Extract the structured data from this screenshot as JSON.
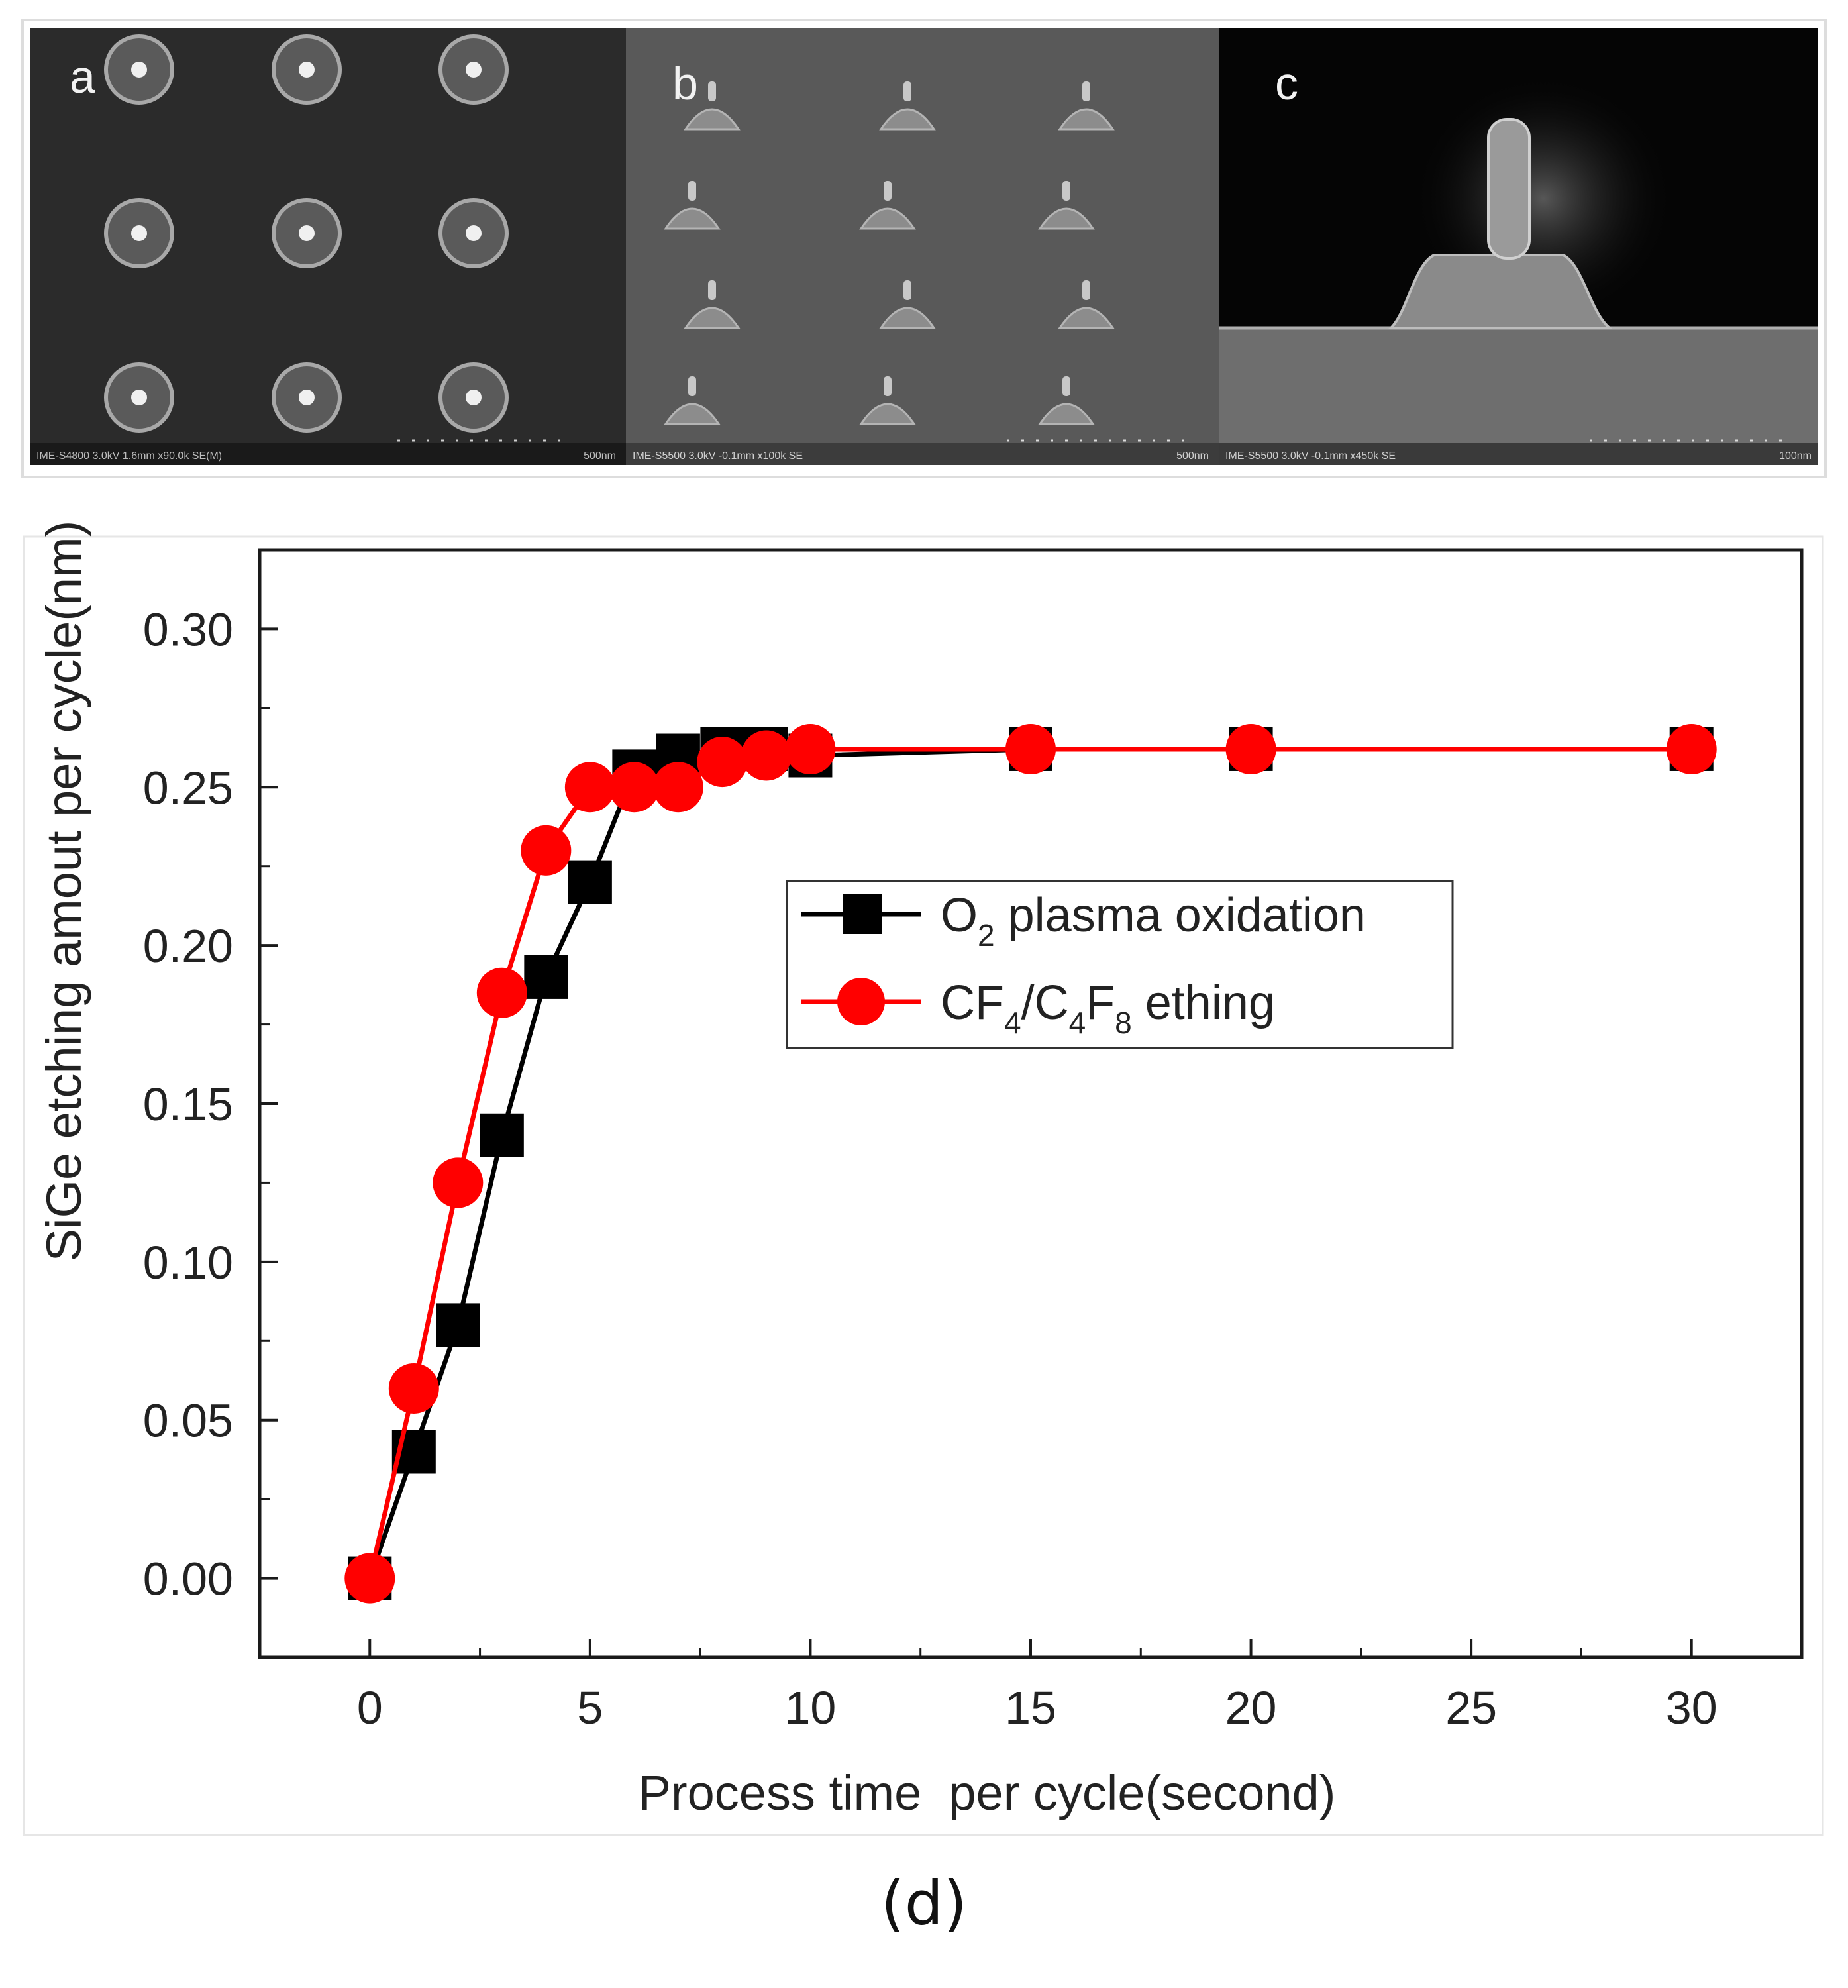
{
  "figure": {
    "caption": "(d)",
    "sem_panels": [
      {
        "label": "a",
        "footer": "IME-S4800 3.0kV 1.6mm x90.0k SE(M)",
        "scale": "500nm"
      },
      {
        "label": "b",
        "footer": "IME-S5500 3.0kV -0.1mm x100k SE",
        "scale": "500nm"
      },
      {
        "label": "c",
        "footer": "IME-S5500 3.0kV -0.1mm x450k SE",
        "scale": "100nm"
      }
    ]
  },
  "chart_data": {
    "type": "line",
    "title": "",
    "xlabel": "Process time  per cycle(second)",
    "ylabel": "SiGe etching amout per cycle(nm)",
    "xlim": [
      -2.5,
      32.5
    ],
    "ylim": [
      -0.025,
      0.325
    ],
    "xticks": [
      0,
      5,
      10,
      15,
      20,
      25,
      30
    ],
    "yticks": [
      0.0,
      0.05,
      0.1,
      0.15,
      0.2,
      0.25,
      0.3
    ],
    "xtick_labels": [
      "0",
      "5",
      "10",
      "15",
      "20",
      "25",
      "30"
    ],
    "ytick_labels": [
      "0.00",
      "0.05",
      "0.10",
      "0.15",
      "0.20",
      "0.25",
      "0.30"
    ],
    "legend_position": "center-right",
    "series": [
      {
        "name": "O2 plasma oxidation",
        "legend_main": "O",
        "legend_sub": "2",
        "legend_rest": " plasma oxidation",
        "color": "#000000",
        "marker": "square",
        "x": [
          0,
          1,
          2,
          3,
          4,
          5,
          6,
          7,
          8,
          9,
          10,
          15,
          20,
          30
        ],
        "y": [
          0.0,
          0.04,
          0.08,
          0.14,
          0.19,
          0.22,
          0.255,
          0.26,
          0.262,
          0.262,
          0.26,
          0.262,
          0.262,
          0.262
        ]
      },
      {
        "name": "CF4/C4F8 ething",
        "legend_parts": [
          "CF",
          "4",
          "/C",
          "4",
          "F",
          "8",
          " ething"
        ],
        "color": "#ff0000",
        "marker": "circle",
        "x": [
          0,
          1,
          2,
          3,
          4,
          5,
          6,
          7,
          8,
          9,
          10,
          15,
          20,
          30
        ],
        "y": [
          0.0,
          0.06,
          0.125,
          0.185,
          0.23,
          0.25,
          0.25,
          0.25,
          0.258,
          0.26,
          0.262,
          0.262,
          0.262,
          0.262
        ]
      }
    ]
  }
}
